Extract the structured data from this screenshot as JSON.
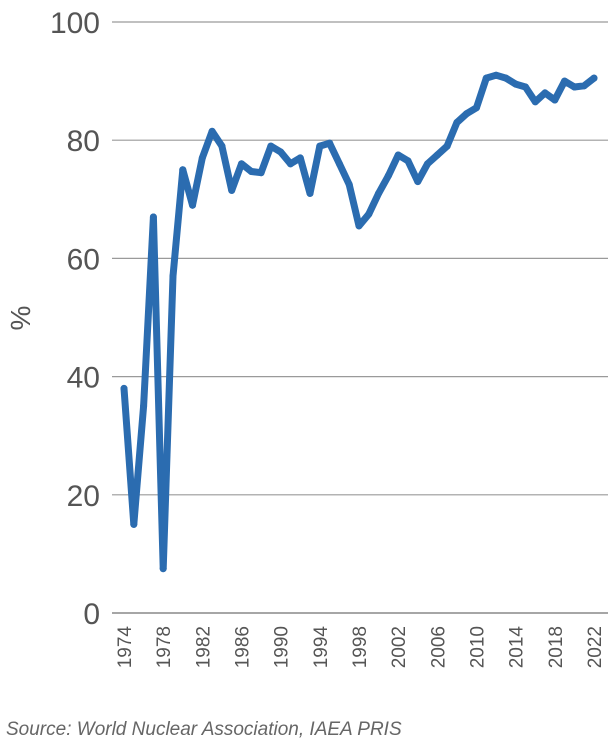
{
  "chart_data": {
    "type": "line",
    "title": "",
    "xlabel": "",
    "ylabel": "%",
    "ylim": [
      0,
      100
    ],
    "xlim": [
      1974,
      2022
    ],
    "grid": true,
    "y_ticks": [
      0,
      20,
      40,
      60,
      80,
      100
    ],
    "x_ticks": [
      1974,
      1978,
      1982,
      1986,
      1990,
      1994,
      1998,
      2002,
      2006,
      2010,
      2014,
      2018,
      2022
    ],
    "series_color": "#2B6CB0",
    "series": [
      {
        "x": [
          1974,
          1975,
          1976,
          1977,
          1978,
          1979,
          1980,
          1981,
          1982,
          1983,
          1984,
          1985,
          1986,
          1987,
          1988,
          1989,
          1990,
          1991,
          1992,
          1993,
          1994,
          1995,
          1996,
          1997,
          1998,
          1999,
          2000,
          2001,
          2002,
          2003,
          2004,
          2005,
          2006,
          2007,
          2008,
          2009,
          2010,
          2011,
          2012,
          2013,
          2014,
          2015,
          2016,
          2017,
          2018,
          2019,
          2020,
          2021,
          2022
        ],
        "values": [
          38,
          15,
          35,
          67,
          7.5,
          57,
          75,
          69,
          77,
          81.5,
          79,
          71.5,
          76,
          74.7,
          74.5,
          79,
          78,
          76,
          77,
          71,
          79,
          79.5,
          76,
          72.5,
          65.5,
          67.5,
          71,
          74,
          77.5,
          76.5,
          73,
          76,
          77.5,
          79,
          83,
          84.5,
          85.5,
          90.5,
          91,
          90.5,
          89.5,
          89,
          86.5,
          88,
          86.8,
          90,
          89,
          89.2,
          90.5
        ]
      }
    ]
  },
  "source": "Source: World Nuclear Association, IAEA PRIS"
}
